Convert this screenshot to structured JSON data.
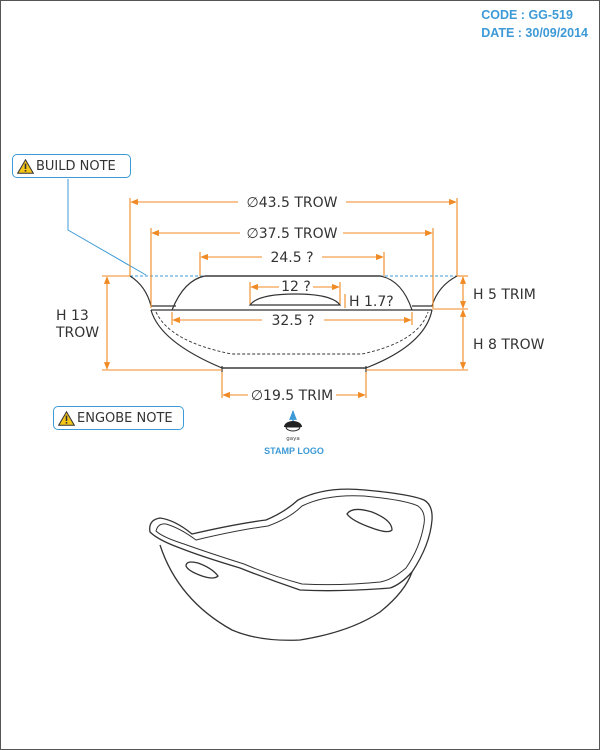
{
  "header": {
    "code": "CODE : GG-519",
    "date": "DATE : 30/09/2014"
  },
  "notes": {
    "build": "BUILD NOTE",
    "engobe": "ENGOBE NOTE"
  },
  "dimensions": {
    "dia_outer": "∅43.5 TROW",
    "dia_inner": "∅37.5 TROW",
    "top_width": "24.5 ?",
    "slot_width": "12 ?",
    "slot_height": "H 1.7?",
    "bottom_width": "32.5 ?",
    "foot_dia": "∅19.5 TRIM",
    "height_total_line1": "H 13",
    "height_total_line2": "TROW",
    "rim_height": "H 5 TRIM",
    "body_height": "H 8 TROW"
  },
  "stamp": {
    "logo_text": "gaya",
    "label": "STAMP LOGO"
  },
  "colors": {
    "dimension": "#f08a24",
    "accent": "#3d9ad6",
    "line": "#333333"
  }
}
